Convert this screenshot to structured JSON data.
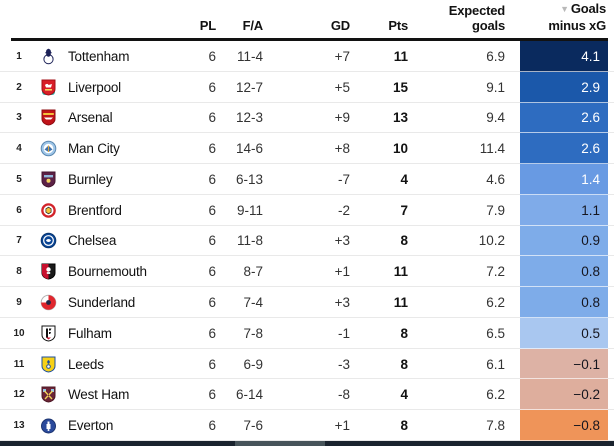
{
  "table": {
    "header": {
      "pl_label": "PL",
      "fa_label": "F/A",
      "gd_label": "GD",
      "pts_label": "Pts",
      "xg_label": "Expected\ngoals",
      "diff_label": "Goals\nminus xG",
      "sort_indicator": "▼"
    },
    "rows": [
      {
        "rank": "1",
        "team": "Tottenham",
        "crest": "tottenham-crest-icon",
        "pl": "6",
        "fa": "11-4",
        "gd": "+7",
        "pts": "11",
        "xg": "6.9",
        "diff": "4.1",
        "diff_bg": "#0a2a5e",
        "diff_text": "#ffffff"
      },
      {
        "rank": "2",
        "team": "Liverpool",
        "crest": "liverpool-crest-icon",
        "pl": "6",
        "fa": "12-7",
        "gd": "+5",
        "pts": "15",
        "xg": "9.1",
        "diff": "2.9",
        "diff_bg": "#1b58aa",
        "diff_text": "#ffffff"
      },
      {
        "rank": "3",
        "team": "Arsenal",
        "crest": "arsenal-crest-icon",
        "pl": "6",
        "fa": "12-3",
        "gd": "+9",
        "pts": "13",
        "xg": "9.4",
        "diff": "2.6",
        "diff_bg": "#2e6cc0",
        "diff_text": "#ffffff"
      },
      {
        "rank": "4",
        "team": "Man City",
        "crest": "man-city-crest-icon",
        "pl": "6",
        "fa": "14-6",
        "gd": "+8",
        "pts": "10",
        "xg": "11.4",
        "diff": "2.6",
        "diff_bg": "#2e6cc0",
        "diff_text": "#ffffff"
      },
      {
        "rank": "5",
        "team": "Burnley",
        "crest": "burnley-crest-icon",
        "pl": "6",
        "fa": "6-13",
        "gd": "-7",
        "pts": "4",
        "xg": "4.6",
        "diff": "1.4",
        "diff_bg": "#689ae3",
        "diff_text": "#ffffff"
      },
      {
        "rank": "6",
        "team": "Brentford",
        "crest": "brentford-crest-icon",
        "pl": "6",
        "fa": "9-11",
        "gd": "-2",
        "pts": "7",
        "xg": "7.9",
        "diff": "1.1",
        "diff_bg": "#7fabe9",
        "diff_text": "#16161f"
      },
      {
        "rank": "7",
        "team": "Chelsea",
        "crest": "chelsea-crest-icon",
        "pl": "6",
        "fa": "11-8",
        "gd": "+3",
        "pts": "8",
        "xg": "10.2",
        "diff": "0.9",
        "diff_bg": "#7eace9",
        "diff_text": "#16161f"
      },
      {
        "rank": "8",
        "team": "Bournemouth",
        "crest": "bournemouth-crest-icon",
        "pl": "6",
        "fa": "8-7",
        "gd": "+1",
        "pts": "11",
        "xg": "7.2",
        "diff": "0.8",
        "diff_bg": "#7eace9",
        "diff_text": "#16161f"
      },
      {
        "rank": "9",
        "team": "Sunderland",
        "crest": "sunderland-crest-icon",
        "pl": "6",
        "fa": "7-4",
        "gd": "+3",
        "pts": "11",
        "xg": "6.2",
        "diff": "0.8",
        "diff_bg": "#7eace9",
        "diff_text": "#16161f"
      },
      {
        "rank": "10",
        "team": "Fulham",
        "crest": "fulham-crest-icon",
        "pl": "6",
        "fa": "7-8",
        "gd": "-1",
        "pts": "8",
        "xg": "6.5",
        "diff": "0.5",
        "diff_bg": "#a9c7f0",
        "diff_text": "#16161f"
      },
      {
        "rank": "11",
        "team": "Leeds",
        "crest": "leeds-crest-icon",
        "pl": "6",
        "fa": "6-9",
        "gd": "-3",
        "pts": "8",
        "xg": "6.1",
        "diff": "−0.1",
        "diff_bg": "#ddb2a5",
        "diff_text": "#16161f"
      },
      {
        "rank": "12",
        "team": "West Ham",
        "crest": "west-ham-crest-icon",
        "pl": "6",
        "fa": "6-14",
        "gd": "-8",
        "pts": "4",
        "xg": "6.2",
        "diff": "−0.2",
        "diff_bg": "#deae9d",
        "diff_text": "#16161f"
      },
      {
        "rank": "13",
        "team": "Everton",
        "crest": "everton-crest-icon",
        "pl": "6",
        "fa": "7-6",
        "gd": "+1",
        "pts": "8",
        "xg": "7.8",
        "diff": "−0.8",
        "diff_bg": "#ef9459",
        "diff_text": "#16161f"
      }
    ]
  },
  "footer": {
    "bar_color": "#1a232e",
    "thumb_color": "#47545a"
  },
  "chart_data": {
    "type": "table",
    "title": "League table sorted by Goals minus xG (descending)",
    "columns": [
      "Rank",
      "Team",
      "PL",
      "F/A",
      "GD",
      "Pts",
      "Expected goals",
      "Goals minus xG"
    ],
    "sorted_by": "Goals minus xG",
    "sort_direction": "descending",
    "rows": [
      [
        1,
        "Tottenham",
        6,
        "11-4",
        7,
        11,
        6.9,
        4.1
      ],
      [
        2,
        "Liverpool",
        6,
        "12-7",
        5,
        15,
        9.1,
        2.9
      ],
      [
        3,
        "Arsenal",
        6,
        "12-3",
        9,
        13,
        9.4,
        2.6
      ],
      [
        4,
        "Man City",
        6,
        "14-6",
        8,
        10,
        11.4,
        2.6
      ],
      [
        5,
        "Burnley",
        6,
        "6-13",
        -7,
        4,
        4.6,
        1.4
      ],
      [
        6,
        "Brentford",
        6,
        "9-11",
        -2,
        7,
        7.9,
        1.1
      ],
      [
        7,
        "Chelsea",
        6,
        "11-8",
        3,
        8,
        10.2,
        0.9
      ],
      [
        8,
        "Bournemouth",
        6,
        "8-7",
        1,
        11,
        7.2,
        0.8
      ],
      [
        9,
        "Sunderland",
        6,
        "7-4",
        3,
        11,
        6.2,
        0.8
      ],
      [
        10,
        "Fulham",
        6,
        "7-8",
        -1,
        8,
        6.5,
        0.5
      ],
      [
        11,
        "Leeds",
        6,
        "6-9",
        -3,
        8,
        6.1,
        -0.1
      ],
      [
        12,
        "West Ham",
        6,
        "6-14",
        -8,
        4,
        6.2,
        -0.2
      ],
      [
        13,
        "Everton",
        6,
        "7-6",
        1,
        8,
        7.8,
        -0.8
      ]
    ]
  }
}
